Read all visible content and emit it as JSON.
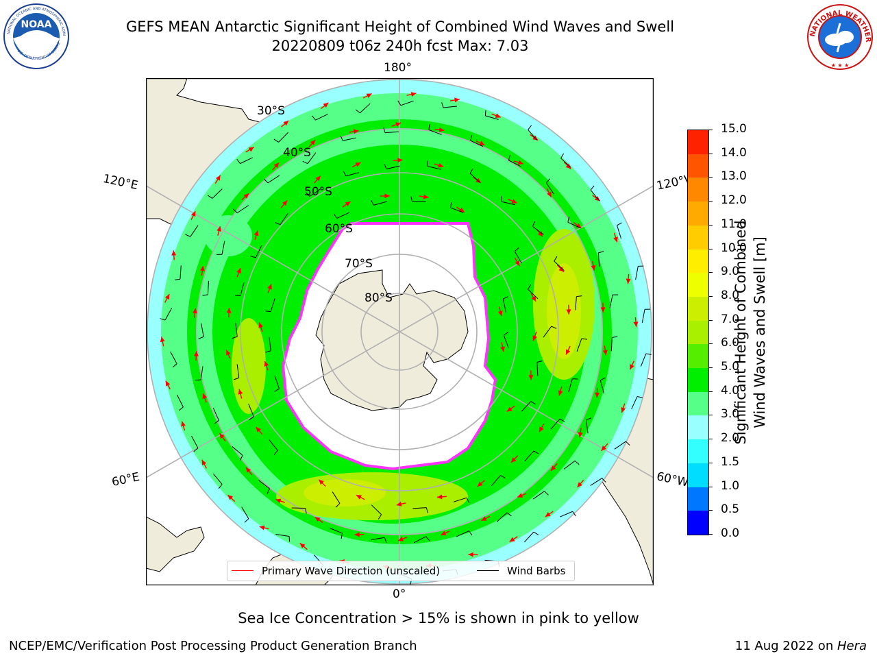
{
  "title": {
    "line1": "GEFS MEAN Antarctic Significant Height of Combined Wind Waves and Swell",
    "line2": "20220809 t06z 240h fcst   Max: 7.03"
  },
  "logos": {
    "noaa_text": "NOAA",
    "noaa_ring_text": "NATIONAL OCEANIC AND ATMOSPHERIC ADMINISTRATION",
    "noaa_ring_text_bottom": "U.S. DEPARTMENT OF COMMERCE",
    "nws_ring_text": "NATIONAL WEATHER SERVICE"
  },
  "map": {
    "lon_labels": {
      "top": "180°",
      "bottom": "0°",
      "upper_left": "120°E",
      "upper_right": "120°W",
      "lower_left": "60°E",
      "lower_right": "60°W"
    },
    "lat_labels": [
      "30°S",
      "40°S",
      "50°S",
      "60°S",
      "70°S",
      "80°S"
    ],
    "legend": {
      "wave": "Primary Wave Direction (unscaled)",
      "wind": "Wind Barbs"
    },
    "colors": {
      "land": "#efecdc",
      "ice": "#ffffff",
      "ice_edge": "#ff33ff",
      "grid": "#b0b0b0",
      "arrow": "#ff0000",
      "barb": "#000000"
    }
  },
  "colorbar": {
    "ticks": [
      "0.0",
      "0.5",
      "1.0",
      "1.5",
      "2.0",
      "3.0",
      "4.0",
      "5.0",
      "6.0",
      "7.0",
      "8.0",
      "9.0",
      "10.0",
      "11.0",
      "12.0",
      "13.0",
      "14.0",
      "15.0"
    ],
    "colors": [
      "#0000ff",
      "#0077ff",
      "#00ddff",
      "#33ffff",
      "#99ffff",
      "#55ff88",
      "#00ee00",
      "#55ee00",
      "#aaee00",
      "#ccee00",
      "#eeff00",
      "#ffee00",
      "#ffcc00",
      "#ffaa00",
      "#ff8800",
      "#ff5500",
      "#ff2200"
    ],
    "label_line1": "Significant Height of Combined",
    "label_line2": "Wind Waves and Swell [m]"
  },
  "caption": "Sea Ice Concentration > 15% is shown in pink to yellow",
  "footer": {
    "left": "NCEP/EMC/Verification Post Processing Product Generation Branch",
    "right_date": "11 Aug 2022 on ",
    "right_host": "Hera"
  }
}
